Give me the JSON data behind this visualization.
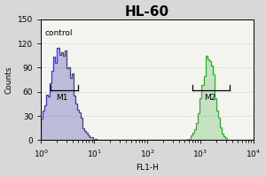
{
  "title": "HL-60",
  "xlabel": "FL1-H",
  "ylabel": "Counts",
  "ylim": [
    0,
    150
  ],
  "yticks": [
    0,
    30,
    60,
    90,
    120,
    150
  ],
  "xlim_log": [
    1,
    10000
  ],
  "background_color": "#d8d8d8",
  "plot_bg_color": "#f5f5f0",
  "control_color": "#3a3aaa",
  "sample_color": "#33aa33",
  "control_label": "control",
  "m1_label": "M1",
  "m2_label": "M2",
  "title_fontsize": 11,
  "axis_fontsize": 6.5,
  "label_fontsize": 6.5,
  "control_peak_mean_log": 0.38,
  "control_peak_sigma_log": 0.22,
  "sample_peak_mean_log": 3.15,
  "sample_peak_sigma_log": 0.12
}
